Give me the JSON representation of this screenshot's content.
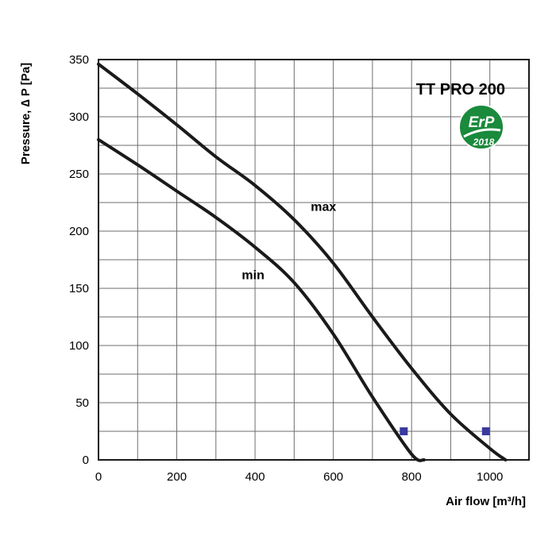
{
  "chart_data": {
    "type": "line",
    "title": "TT PRO 200",
    "badge": {
      "top": "ErP",
      "bottom": "2018",
      "color": "#1a8a3c"
    },
    "xlabel": "Air flow [m³/h]",
    "ylabel": "Pressure, ∆ P [Pa]",
    "xlim": [
      0,
      1100
    ],
    "ylim": [
      0,
      350
    ],
    "x_ticks": [
      0,
      200,
      400,
      600,
      800,
      1000
    ],
    "y_ticks": [
      0,
      50,
      100,
      150,
      200,
      250,
      300,
      350
    ],
    "x_grid_step": 100,
    "y_grid_step": 25,
    "grid": true,
    "series": [
      {
        "name": "max",
        "color": "#1a1a1a",
        "points": [
          [
            0,
            346
          ],
          [
            100,
            320
          ],
          [
            200,
            293
          ],
          [
            300,
            265
          ],
          [
            400,
            240
          ],
          [
            500,
            210
          ],
          [
            600,
            172
          ],
          [
            700,
            125
          ],
          [
            800,
            80
          ],
          [
            900,
            40
          ],
          [
            1000,
            10
          ],
          [
            1040,
            0
          ]
        ],
        "marker": [
          990,
          25
        ]
      },
      {
        "name": "min",
        "color": "#1a1a1a",
        "points": [
          [
            0,
            280
          ],
          [
            100,
            258
          ],
          [
            200,
            235
          ],
          [
            300,
            212
          ],
          [
            400,
            186
          ],
          [
            500,
            155
          ],
          [
            600,
            110
          ],
          [
            700,
            55
          ],
          [
            800,
            5
          ],
          [
            832,
            0
          ]
        ],
        "marker": [
          780,
          25
        ]
      }
    ],
    "series_labels": [
      {
        "text": "max",
        "x": 575,
        "y": 222
      },
      {
        "text": "min",
        "x": 395,
        "y": 162
      }
    ],
    "marker_color": "#3a3aa0"
  }
}
